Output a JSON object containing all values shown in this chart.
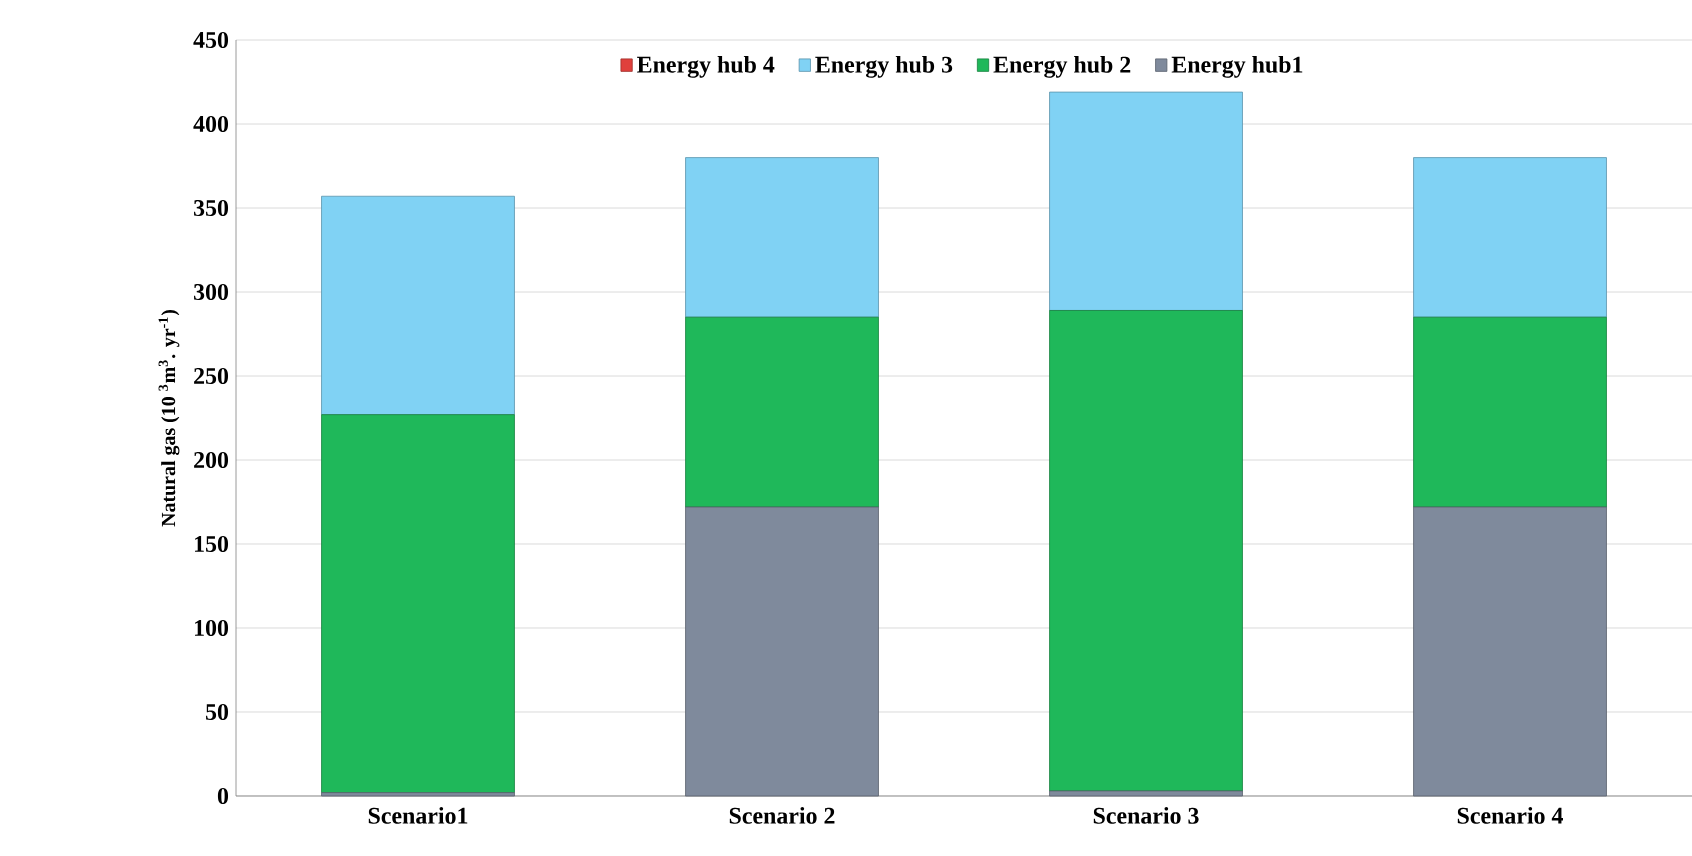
{
  "chart_data": {
    "type": "bar",
    "stacked": true,
    "ylabel": "Natural gas (10 $^{3}$m$^{3}$. yr$^{-1}$)",
    "categories": [
      "Scenario1",
      "Scenario 2",
      "Scenario 3",
      "Scenario 4"
    ],
    "series": [
      {
        "name": "Energy hub1",
        "color": "#7f8a9c",
        "values": [
          2,
          172,
          3,
          172
        ]
      },
      {
        "name": "Energy hub 2",
        "color": "#1fb85a",
        "values": [
          225,
          113,
          286,
          113
        ]
      },
      {
        "name": "Energy hub 3",
        "color": "#80d2f4",
        "values": [
          130,
          95,
          130,
          95
        ]
      },
      {
        "name": "Energy hub 4",
        "color": "#e0403c",
        "values": [
          0,
          0,
          0,
          0
        ]
      }
    ],
    "ylim": [
      0,
      450
    ],
    "yticks": [
      0,
      50,
      100,
      150,
      200,
      250,
      300,
      350,
      400,
      450
    ],
    "grid": "y",
    "legend": "top"
  }
}
